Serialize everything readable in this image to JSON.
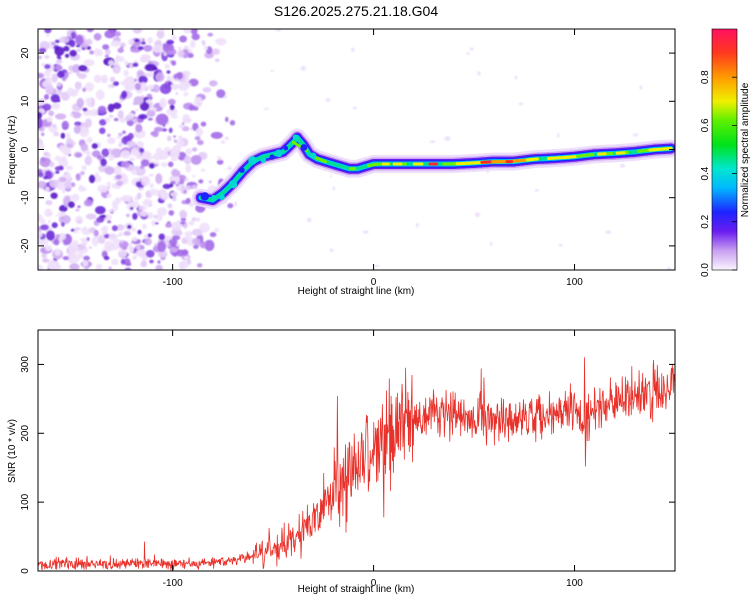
{
  "title": "S126.2025.275.21.18.G04",
  "chart_data": [
    {
      "type": "heatmap",
      "name": "spectrogram",
      "xlabel": "Height of straight line (km)",
      "ylabel": "Frequency (Hz)",
      "xlim": [
        -167,
        150
      ],
      "ylim": [
        -25,
        25
      ],
      "xticks": [
        -100,
        0,
        100
      ],
      "yticks": [
        -20,
        -10,
        0,
        10,
        20
      ],
      "colorbar": {
        "label": "Normalized spectral amplitude",
        "range": [
          0,
          1
        ],
        "ticks": [
          0.0,
          0.2,
          0.4,
          0.6,
          0.8
        ]
      },
      "ridge": {
        "x": [
          -86,
          -80,
          -75,
          -70,
          -65,
          -60,
          -55,
          -50,
          -45,
          -40,
          -38,
          -35,
          -32,
          -28,
          -24,
          -20,
          -16,
          -12,
          -8,
          -4,
          0,
          10,
          20,
          30,
          40,
          50,
          60,
          70,
          80,
          90,
          100,
          110,
          120,
          130,
          140,
          148
        ],
        "y": [
          -10,
          -10.5,
          -9,
          -7,
          -4.5,
          -2.5,
          -1.5,
          -1,
          -0.5,
          1.5,
          2.5,
          1,
          -1,
          -2,
          -2.5,
          -3,
          -3.5,
          -4,
          -4,
          -3.5,
          -3,
          -3,
          -3,
          -3,
          -3,
          -2.8,
          -2.5,
          -2.5,
          -2,
          -1.8,
          -1.5,
          -1,
          -0.8,
          -0.5,
          0,
          0.2
        ]
      }
    },
    {
      "type": "line",
      "name": "snr",
      "xlabel": "Height of straight line (km)",
      "ylabel": "SNR (10 * v/v)",
      "xlim": [
        -167,
        150
      ],
      "ylim": [
        0,
        350
      ],
      "xticks": [
        -100,
        0,
        100
      ],
      "yticks": [
        0,
        100,
        200,
        300
      ],
      "color": "#e8312a",
      "envelope": {
        "x": [
          -167,
          -100,
          -85,
          -70,
          -60,
          -50,
          -40,
          -30,
          -20,
          -10,
          0,
          5,
          10,
          20,
          30,
          50,
          70,
          80,
          90,
          100,
          105,
          110,
          120,
          130,
          140,
          150
        ],
        "y": [
          10,
          11,
          12,
          15,
          22,
          30,
          45,
          70,
          110,
          150,
          180,
          190,
          200,
          220,
          230,
          222,
          220,
          225,
          228,
          235,
          210,
          240,
          245,
          250,
          260,
          268
        ]
      },
      "events": [
        {
          "x": 105,
          "dy": 110
        },
        {
          "x": 105.5,
          "dy": -80
        },
        {
          "x": -18,
          "dy": 95
        },
        {
          "x": 5,
          "dy": -120
        },
        {
          "x": -52,
          "dy": 45
        },
        {
          "x": -114,
          "dy": 25
        }
      ]
    }
  ]
}
